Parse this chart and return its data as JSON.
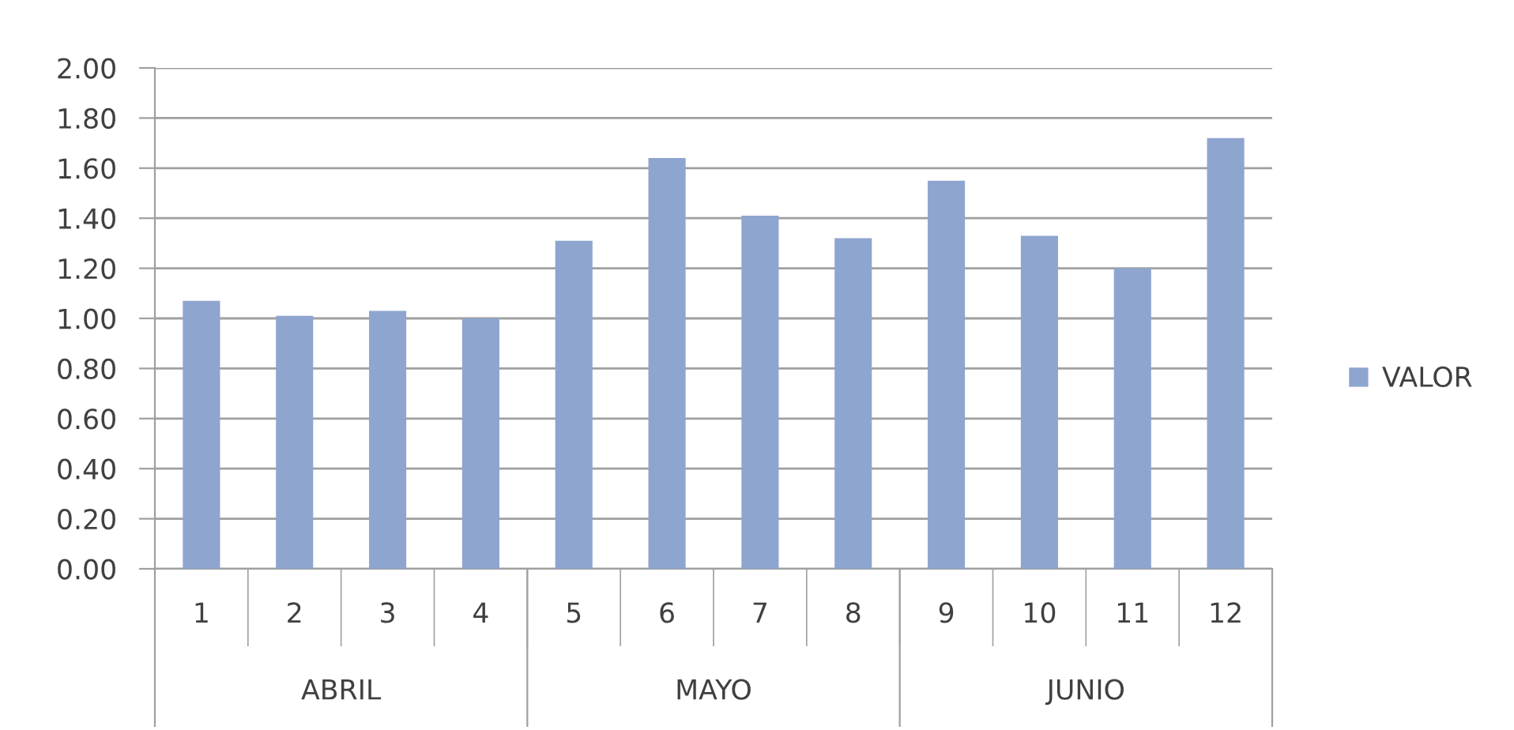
{
  "chart_data": {
    "type": "bar",
    "categories": [
      "1",
      "2",
      "3",
      "4",
      "5",
      "6",
      "7",
      "8",
      "9",
      "10",
      "11",
      "12"
    ],
    "series": [
      {
        "name": "VALOR",
        "color": "#8ea5cf",
        "values": [
          1.07,
          1.01,
          1.03,
          1.0,
          1.31,
          1.64,
          1.41,
          1.32,
          1.55,
          1.33,
          1.2,
          1.72
        ]
      }
    ],
    "ylim": [
      0,
      2
    ],
    "yticks": [
      {
        "value": 0,
        "label": "0.00"
      },
      {
        "value": 0.2,
        "label": "0.20"
      },
      {
        "value": 0.4,
        "label": "0.40"
      },
      {
        "value": 0.6,
        "label": "0.60"
      },
      {
        "value": 0.8,
        "label": "0.80"
      },
      {
        "value": 1.0,
        "label": "1.00"
      },
      {
        "value": 1.2,
        "label": "1.20"
      },
      {
        "value": 1.4,
        "label": "1.40"
      },
      {
        "value": 1.6,
        "label": "1.60"
      },
      {
        "value": 1.8,
        "label": "1.80"
      },
      {
        "value": 2.0,
        "label": "2.00"
      }
    ],
    "grid": "y",
    "legend": "right",
    "annotations": [
      "ABRIL",
      "MAYO",
      "JUNIO"
    ]
  }
}
